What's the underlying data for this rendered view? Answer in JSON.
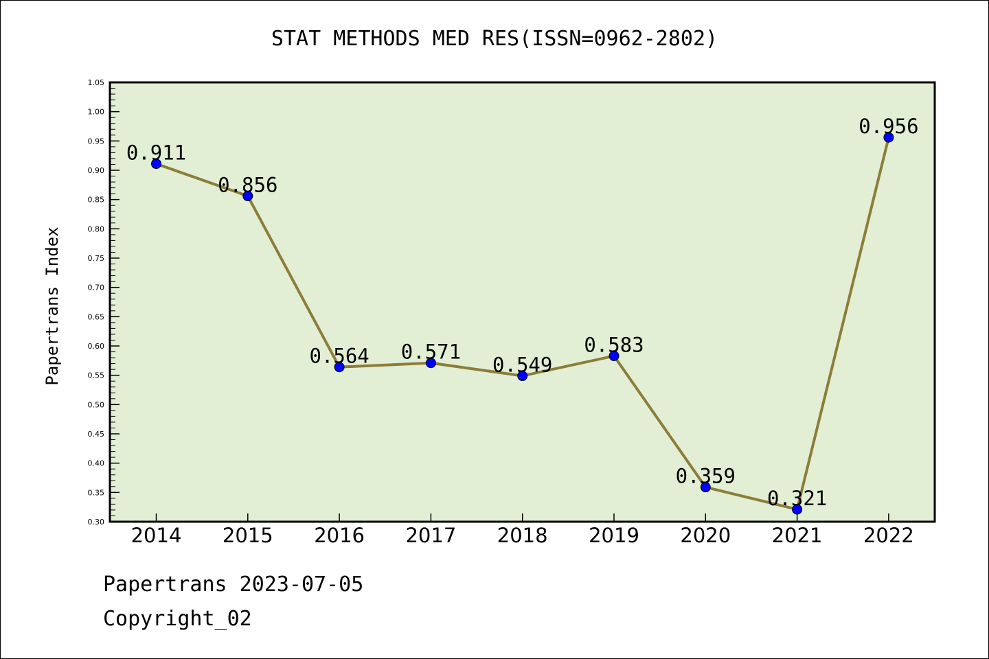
{
  "chart_data": {
    "type": "line",
    "title": "STAT METHODS MED RES(ISSN=0962-2802)",
    "ylabel": "Papertrans Index",
    "xlabel": "",
    "categories": [
      "2014",
      "2015",
      "2016",
      "2017",
      "2018",
      "2019",
      "2020",
      "2021",
      "2022"
    ],
    "values": [
      0.911,
      0.856,
      0.564,
      0.571,
      0.549,
      0.583,
      0.359,
      0.321,
      0.956
    ],
    "data_labels": [
      "0.911",
      "0.856",
      "0.564",
      "0.571",
      "0.549",
      "0.583",
      "0.359",
      "0.321",
      "0.956"
    ],
    "ylim": [
      0.3,
      1.05
    ],
    "yticks": [
      "0.30",
      "0.35",
      "0.40",
      "0.45",
      "0.50",
      "0.55",
      "0.60",
      "0.65",
      "0.70",
      "0.75",
      "0.80",
      "0.85",
      "0.90",
      "0.95",
      "1.00",
      "1.05"
    ],
    "grid": false,
    "legend": "none",
    "colors": {
      "plot_background": "#e2efd5",
      "line": "#8c7d3a",
      "marker": "#0000ff"
    }
  },
  "footer": {
    "line1": "Papertrans 2023-07-05",
    "line2": "Copyright_02"
  }
}
